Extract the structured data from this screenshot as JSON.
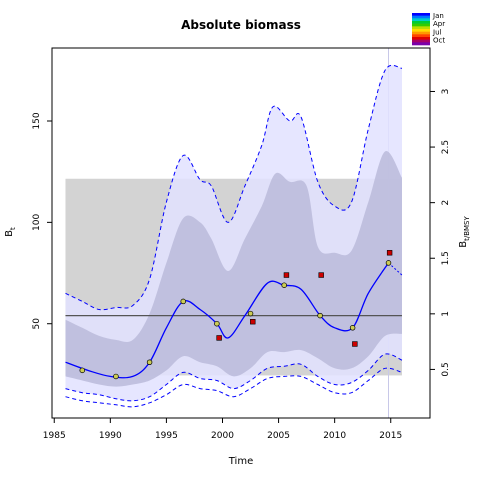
{
  "chart_data": {
    "type": "line",
    "title": "Absolute biomass",
    "xlabel": "Time",
    "ylabel": "B",
    "ylabel_sub": "t",
    "ylabel2": "B",
    "ylabel2_sub": "t/BMSY",
    "xlim": [
      1984.8,
      2018.5
    ],
    "ylim": [
      3.5,
      186
    ],
    "ylim2": [
      0.0631,
      3.391
    ],
    "x_ticks": [
      1985,
      1990,
      1995,
      2000,
      2005,
      2010,
      2015
    ],
    "y_ticks": [
      50,
      100,
      150
    ],
    "y2_ticks": [
      0.5,
      1,
      1.5,
      2,
      2.5,
      3
    ],
    "bmsy": 54,
    "ref_band": [
      24.5,
      121.5
    ],
    "ref_band_x": [
      1986,
      2016
    ],
    "last_obs_x": 2014.8,
    "colors": {
      "line": "#0000ff",
      "outer_band": "#e2e2ff",
      "inner_band": "#b8b8d8",
      "ref_band": "#d3d3d3",
      "bmsy_line": "#555555",
      "index_point": "#cc0000",
      "data_point": "#cccc55"
    },
    "series": [
      {
        "x": [
          1986,
          1988,
          1990,
          1992,
          1993.5,
          1995,
          1996.5,
          1998,
          1999.5,
          2000.5,
          2002,
          2004,
          2005.5,
          2007,
          2008.7,
          2010,
          2011.6,
          2013,
          2014.8
        ],
        "values": [
          31,
          27,
          24,
          24,
          31,
          48,
          61,
          57,
          50,
          43,
          54,
          70,
          69,
          67,
          54,
          48,
          48,
          65,
          80
        ],
        "points": [
          [
            1987.5,
            27
          ],
          [
            1990.5,
            24
          ],
          [
            1993.5,
            31
          ],
          [
            1996.5,
            61
          ],
          [
            1999.5,
            50
          ],
          [
            2002.5,
            55
          ],
          [
            2005.5,
            69
          ],
          [
            2008.7,
            54
          ],
          [
            2011.6,
            48
          ],
          [
            2014.8,
            80
          ]
        ]
      },
      {
        "x": [
          2014.8,
          2016
        ],
        "values": [
          80,
          74
        ]
      },
      {
        "x": [
          1986,
          1987.5,
          1989,
          1990.5,
          1992,
          1993.5,
          1995,
          1996.5,
          1998,
          1999,
          2000.5,
          2002,
          2003.5,
          2004.7,
          2006,
          2007.5,
          2008.5,
          2010,
          2011.5,
          2013,
          2014.5,
          2016
        ],
        "values": [
          52,
          48,
          44,
          42,
          42,
          55,
          80,
          102,
          100,
          92,
          76,
          92,
          108,
          124,
          120,
          118,
          88,
          85,
          86,
          110,
          135,
          122
        ]
      },
      {
        "x": [
          1986,
          1987.5,
          1989,
          1990.5,
          1992,
          1993.5,
          1995,
          1996.5,
          1998,
          1999.5,
          2001,
          2002.5,
          2004,
          2005.5,
          2007,
          2008.5,
          2010,
          2011.5,
          2013,
          2014.5,
          2016
        ],
        "values": [
          24,
          22,
          20,
          19,
          20,
          22,
          27,
          34,
          31,
          29,
          24,
          28,
          36,
          36,
          37,
          33,
          28,
          28,
          34,
          44,
          45
        ]
      },
      {
        "x": [
          1986,
          1987.5,
          1989,
          1990.5,
          1992,
          1993.5,
          1995,
          1996.5,
          1998,
          1999,
          2000.5,
          2002,
          2003.5,
          2004.5,
          2006,
          2007,
          2008.5,
          2010,
          2011.5,
          2013,
          2014.5,
          2016
        ],
        "values": [
          65,
          61,
          57,
          58,
          59,
          72,
          110,
          133,
          121,
          118,
          100,
          118,
          138,
          157,
          150,
          152,
          120,
          108,
          110,
          146,
          175,
          176
        ]
      },
      {
        "x": [
          1986,
          1987.5,
          1989,
          1990.5,
          1992,
          1993.5,
          1995,
          1996.5,
          1998,
          1999.5,
          2001,
          2002.5,
          2004,
          2005.5,
          2007,
          2008.5,
          2010,
          2011.5,
          2013,
          2014.5,
          2016
        ],
        "values": [
          18,
          16,
          15,
          13,
          12,
          14,
          20,
          26,
          23,
          22,
          18,
          22,
          28,
          29,
          30,
          24,
          20,
          21,
          27,
          35,
          32
        ]
      },
      {
        "x": [
          1986,
          1987.5,
          1989,
          1990.5,
          1992,
          1993.5,
          1995,
          1996.5,
          1998,
          1999.5,
          2001,
          2002.5,
          2004,
          2005.5,
          2007,
          2008.5,
          2010,
          2011.5,
          2013,
          2014.5,
          2016
        ],
        "values": [
          14,
          12,
          11,
          10,
          9,
          11,
          15,
          20,
          18,
          17,
          14,
          18,
          23,
          24,
          24,
          20,
          16,
          16,
          22,
          28,
          26
        ]
      }
    ],
    "index_points": {
      "x": [
        1999.7,
        2002.7,
        2005.7,
        2008.8,
        2011.8,
        2014.9
      ],
      "values": [
        43,
        51,
        74,
        74,
        40,
        85
      ]
    },
    "legend": {
      "placement": "top-right",
      "labels": [
        "Jan",
        "Apr",
        "Jul",
        "Oct"
      ]
    }
  }
}
